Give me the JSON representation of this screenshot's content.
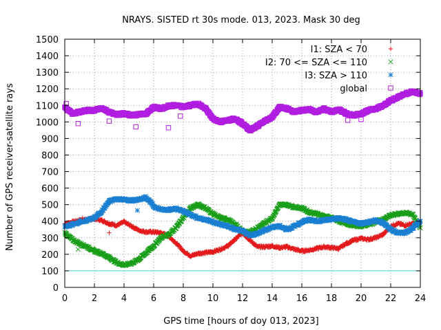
{
  "chart_data": {
    "type": "scatter",
    "title": "NRAYS. SISTED rt 30s mode. 013, 2023. Mask 30 deg",
    "xlabel": "GPS time [hours of doy 013, 2023]",
    "ylabel": "Number of GPS receiver-satellite rays",
    "xlim": [
      0,
      24
    ],
    "ylim": [
      0,
      1500
    ],
    "xticks": [
      0,
      2,
      4,
      6,
      8,
      10,
      12,
      14,
      16,
      18,
      20,
      22,
      24
    ],
    "yticks": [
      0,
      100,
      200,
      300,
      400,
      500,
      600,
      700,
      800,
      900,
      1000,
      1100,
      1200,
      1300,
      1400,
      1500
    ],
    "grid": true,
    "legend_position": "top-right",
    "reference_line": {
      "y": 100,
      "color": "#40d0e0"
    },
    "series": [
      {
        "name": "I1: SZA < 70",
        "marker": "+",
        "color": "#e31a1c",
        "x": [
          0,
          0.5,
          1,
          1.5,
          2,
          2.5,
          3,
          3.5,
          4,
          4.5,
          5,
          5.5,
          6,
          6.5,
          7,
          7.5,
          8,
          8.5,
          9,
          9.5,
          10,
          10.5,
          11,
          11.5,
          12,
          12.5,
          13,
          13.5,
          14,
          14.5,
          15,
          15.5,
          16,
          16.5,
          17,
          17.5,
          18,
          18.5,
          19,
          19.5,
          20,
          20.5,
          21,
          21.5,
          22,
          22.5,
          23,
          23.5,
          24
        ],
        "values": [
          385,
          395,
          405,
          410,
          415,
          405,
          385,
          375,
          395,
          370,
          345,
          335,
          335,
          330,
          310,
          270,
          220,
          190,
          205,
          210,
          215,
          230,
          250,
          290,
          330,
          285,
          245,
          245,
          250,
          240,
          245,
          230,
          220,
          225,
          235,
          245,
          240,
          235,
          265,
          285,
          295,
          290,
          300,
          320,
          370,
          385,
          375,
          385,
          395
        ]
      },
      {
        "name": "I2: 70 <= SZA <= 110",
        "marker": "x",
        "color": "#1a9e1a",
        "x": [
          0,
          0.5,
          1,
          1.5,
          2,
          2.5,
          3,
          3.5,
          4,
          4.5,
          5,
          5.5,
          6,
          6.5,
          7,
          7.5,
          8,
          8.5,
          9,
          9.5,
          10,
          10.5,
          11,
          11.5,
          12,
          12.5,
          13,
          13.5,
          14,
          14.5,
          15,
          15.5,
          16,
          16.5,
          17,
          17.5,
          18,
          18.5,
          19,
          19.5,
          20,
          20.5,
          21,
          21.5,
          22,
          22.5,
          23,
          23.5,
          24
        ],
        "values": [
          330,
          290,
          265,
          245,
          220,
          205,
          180,
          150,
          135,
          145,
          170,
          210,
          250,
          300,
          320,
          360,
          420,
          480,
          500,
          480,
          445,
          420,
          410,
          380,
          340,
          330,
          360,
          390,
          420,
          500,
          500,
          485,
          480,
          455,
          445,
          430,
          420,
          400,
          385,
          375,
          370,
          380,
          395,
          410,
          435,
          445,
          450,
          440,
          360
        ]
      },
      {
        "name": "I3: SZA > 110",
        "marker": "*",
        "color": "#1a7fd1",
        "x": [
          0,
          0.5,
          1,
          1.5,
          2,
          2.5,
          3,
          3.5,
          4,
          4.5,
          5,
          5.5,
          6,
          6.5,
          7,
          7.5,
          8,
          8.5,
          9,
          9.5,
          10,
          10.5,
          11,
          11.5,
          12,
          12.5,
          13,
          13.5,
          14,
          14.5,
          15,
          15.5,
          16,
          16.5,
          17,
          17.5,
          18,
          18.5,
          19,
          19.5,
          20,
          20.5,
          21,
          21.5,
          22,
          22.5,
          23,
          23.5,
          24
        ],
        "values": [
          365,
          380,
          395,
          405,
          420,
          460,
          520,
          535,
          530,
          525,
          530,
          545,
          490,
          470,
          470,
          475,
          460,
          440,
          420,
          410,
          395,
          380,
          370,
          350,
          340,
          315,
          325,
          345,
          365,
          370,
          350,
          370,
          395,
          410,
          400,
          405,
          410,
          420,
          410,
          395,
          385,
          395,
          405,
          390,
          350,
          330,
          330,
          360,
          400
        ]
      },
      {
        "name": "global",
        "marker": "square",
        "color": "#b01ee0",
        "x": [
          0,
          0.5,
          1,
          1.5,
          2,
          2.5,
          3,
          3.5,
          4,
          4.5,
          5,
          5.5,
          6,
          6.5,
          7,
          7.5,
          8,
          8.5,
          9,
          9.5,
          10,
          10.5,
          11,
          11.5,
          12,
          12.5,
          13,
          13.5,
          14,
          14.5,
          15,
          15.5,
          16,
          16.5,
          17,
          17.5,
          18,
          18.5,
          19,
          19.5,
          20,
          20.5,
          21,
          21.5,
          22,
          22.5,
          23,
          23.5,
          24
        ],
        "values": [
          1090,
          1050,
          1060,
          1070,
          1070,
          1085,
          1060,
          1045,
          1050,
          1040,
          1045,
          1050,
          1090,
          1080,
          1095,
          1100,
          1090,
          1100,
          1110,
          1080,
          1020,
          1000,
          1010,
          1020,
          990,
          950,
          975,
          1005,
          1030,
          1090,
          1080,
          1060,
          1070,
          1075,
          1060,
          1080,
          1060,
          1075,
          1050,
          1040,
          1050,
          1070,
          1080,
          1100,
          1130,
          1150,
          1170,
          1185,
          1170
        ]
      }
    ],
    "outliers": [
      {
        "series": 3,
        "x": 0.9,
        "y": 990
      },
      {
        "series": 3,
        "x": 3.0,
        "y": 1005
      },
      {
        "series": 3,
        "x": 4.8,
        "y": 970
      },
      {
        "series": 3,
        "x": 7.0,
        "y": 965
      },
      {
        "series": 3,
        "x": 7.8,
        "y": 1035
      },
      {
        "series": 3,
        "x": 19.1,
        "y": 1010
      },
      {
        "series": 3,
        "x": 20.0,
        "y": 1015
      },
      {
        "series": 3,
        "x": 0.1,
        "y": 1110
      },
      {
        "series": 2,
        "x": 4.9,
        "y": 465
      },
      {
        "series": 1,
        "x": 0.9,
        "y": 230
      },
      {
        "series": 0,
        "x": 3.0,
        "y": 330
      },
      {
        "series": 0,
        "x": 1.2,
        "y": 420
      }
    ]
  }
}
